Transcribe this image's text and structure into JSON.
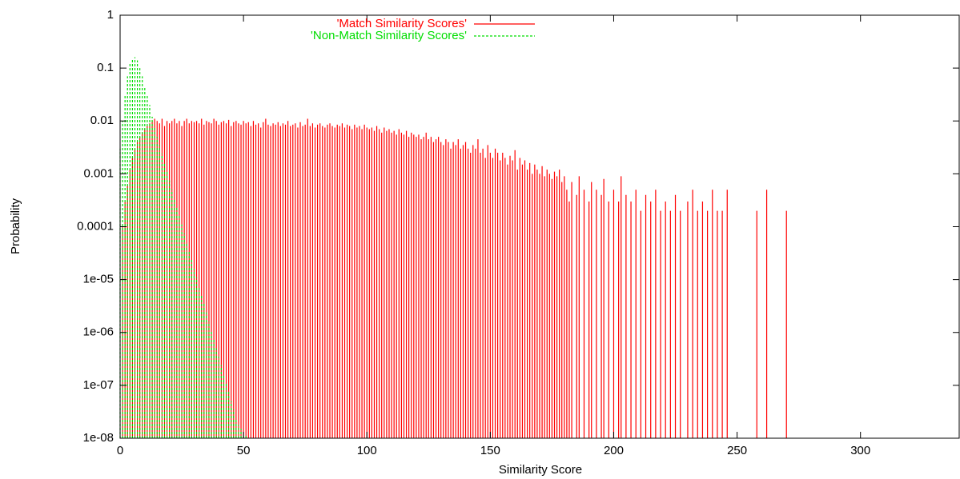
{
  "chart_data": {
    "type": "impulse",
    "xlabel": "Similarity Score",
    "ylabel": "Probability",
    "log_y": true,
    "legend": "top",
    "xlim": [
      0,
      340
    ],
    "xticks": [
      0,
      50,
      100,
      150,
      200,
      250,
      300
    ],
    "ylim": [
      1e-08,
      1
    ],
    "yticks": [
      1,
      0.1,
      0.01,
      0.001,
      0.0001,
      {
        "value": 1e-05,
        "label": "1e-05"
      },
      {
        "value": 1e-06,
        "label": "1e-06"
      },
      {
        "value": 1e-07,
        "label": "1e-07"
      },
      {
        "value": 1e-08,
        "label": "1e-08"
      }
    ],
    "series": [
      {
        "name": "'Match Similarity Scores'",
        "color": "#ff0000",
        "dash": false,
        "x": [
          1,
          2,
          3,
          4,
          5,
          6,
          7,
          8,
          9,
          10,
          11,
          12,
          13,
          14,
          15,
          16,
          17,
          18,
          19,
          20,
          21,
          22,
          23,
          24,
          25,
          26,
          27,
          28,
          29,
          30,
          31,
          32,
          33,
          34,
          35,
          36,
          37,
          38,
          39,
          40,
          41,
          42,
          43,
          44,
          45,
          46,
          47,
          48,
          49,
          50,
          51,
          52,
          53,
          54,
          55,
          56,
          57,
          58,
          59,
          60,
          61,
          62,
          63,
          64,
          65,
          66,
          67,
          68,
          69,
          70,
          71,
          72,
          73,
          74,
          75,
          76,
          77,
          78,
          79,
          80,
          81,
          82,
          83,
          84,
          85,
          86,
          87,
          88,
          89,
          90,
          91,
          92,
          93,
          94,
          95,
          96,
          97,
          98,
          99,
          100,
          101,
          102,
          103,
          104,
          105,
          106,
          107,
          108,
          109,
          110,
          111,
          112,
          113,
          114,
          115,
          116,
          117,
          118,
          119,
          120,
          121,
          122,
          123,
          124,
          125,
          126,
          127,
          128,
          129,
          130,
          131,
          132,
          133,
          134,
          135,
          136,
          137,
          138,
          139,
          140,
          141,
          142,
          143,
          144,
          145,
          146,
          147,
          148,
          149,
          150,
          151,
          152,
          153,
          154,
          155,
          156,
          157,
          158,
          159,
          160,
          161,
          162,
          163,
          164,
          165,
          166,
          167,
          168,
          169,
          170,
          171,
          172,
          173,
          174,
          175,
          176,
          177,
          178,
          179,
          180,
          181,
          182,
          183,
          185,
          186,
          188,
          190,
          191,
          193,
          195,
          196,
          198,
          200,
          202,
          203,
          205,
          207,
          209,
          211,
          213,
          215,
          217,
          219,
          221,
          223,
          225,
          227,
          230,
          232,
          234,
          236,
          238,
          240,
          242,
          244,
          246,
          258,
          262,
          270
        ],
        "values": [
          0.0001,
          0.0003,
          0.0006,
          0.0012,
          0.002,
          0.003,
          0.004,
          0.005,
          0.006,
          0.007,
          0.008,
          0.009,
          0.01,
          0.011,
          0.01,
          0.009,
          0.011,
          0.008,
          0.01,
          0.009,
          0.01,
          0.011,
          0.009,
          0.01,
          0.008,
          0.01,
          0.011,
          0.009,
          0.01,
          0.0095,
          0.01,
          0.009,
          0.011,
          0.0085,
          0.01,
          0.0095,
          0.009,
          0.011,
          0.01,
          0.0085,
          0.0095,
          0.01,
          0.009,
          0.0105,
          0.008,
          0.0095,
          0.01,
          0.009,
          0.0085,
          0.01,
          0.009,
          0.0095,
          0.008,
          0.01,
          0.0085,
          0.009,
          0.0075,
          0.0095,
          0.011,
          0.0085,
          0.008,
          0.009,
          0.0085,
          0.0095,
          0.008,
          0.009,
          0.0085,
          0.01,
          0.008,
          0.0085,
          0.009,
          0.0075,
          0.0095,
          0.008,
          0.0085,
          0.011,
          0.008,
          0.009,
          0.0075,
          0.0085,
          0.009,
          0.008,
          0.0075,
          0.0085,
          0.009,
          0.008,
          0.0075,
          0.0085,
          0.008,
          0.009,
          0.0075,
          0.0085,
          0.008,
          0.007,
          0.0085,
          0.0075,
          0.008,
          0.007,
          0.0085,
          0.0075,
          0.007,
          0.0075,
          0.0065,
          0.008,
          0.007,
          0.006,
          0.0075,
          0.0065,
          0.007,
          0.006,
          0.0065,
          0.0055,
          0.007,
          0.006,
          0.0055,
          0.0065,
          0.005,
          0.006,
          0.0055,
          0.005,
          0.0055,
          0.0045,
          0.005,
          0.006,
          0.0045,
          0.005,
          0.004,
          0.0045,
          0.005,
          0.004,
          0.0035,
          0.0045,
          0.004,
          0.003,
          0.004,
          0.0035,
          0.0045,
          0.003,
          0.0035,
          0.004,
          0.003,
          0.0025,
          0.0035,
          0.003,
          0.0045,
          0.0025,
          0.003,
          0.002,
          0.0035,
          0.0025,
          0.002,
          0.003,
          0.0025,
          0.0018,
          0.0025,
          0.002,
          0.0015,
          0.0022,
          0.0018,
          0.0028,
          0.0012,
          0.002,
          0.0015,
          0.0018,
          0.0012,
          0.0016,
          0.001,
          0.0015,
          0.0012,
          0.001,
          0.0014,
          0.0009,
          0.0012,
          0.001,
          0.0008,
          0.0011,
          0.0009,
          0.0012,
          0.0007,
          0.0009,
          0.0005,
          0.0003,
          0.0007,
          0.0004,
          0.0009,
          0.0005,
          0.0003,
          0.0007,
          0.0005,
          0.0004,
          0.0008,
          0.0003,
          0.0005,
          0.0003,
          0.0009,
          0.0004,
          0.0003,
          0.0005,
          0.0002,
          0.0004,
          0.0003,
          0.0005,
          0.0002,
          0.0003,
          0.0002,
          0.0004,
          0.0002,
          0.0003,
          0.0005,
          0.0002,
          0.0003,
          0.0002,
          0.0005,
          0.0002,
          0.0002,
          0.0005,
          0.0002,
          0.0005,
          0.0002
        ]
      },
      {
        "name": "'Non-Match Similarity Scores'",
        "color": "#00dd00",
        "dash": true,
        "x": [
          0,
          1,
          2,
          3,
          4,
          5,
          6,
          7,
          8,
          9,
          10,
          11,
          12,
          13,
          14,
          15,
          16,
          17,
          18,
          19,
          20,
          21,
          22,
          23,
          24,
          25,
          26,
          27,
          28,
          29,
          30,
          31,
          32,
          33,
          34,
          35,
          36,
          37,
          38,
          39,
          40,
          41,
          42,
          43,
          44,
          45,
          46,
          47,
          48,
          49,
          50,
          51
        ],
        "values": [
          0.003,
          0.01,
          0.03,
          0.07,
          0.12,
          0.15,
          0.16,
          0.14,
          0.1,
          0.07,
          0.045,
          0.03,
          0.02,
          0.012,
          0.008,
          0.005,
          0.0035,
          0.0024,
          0.0016,
          0.0011,
          0.00075,
          0.0005,
          0.00035,
          0.00024,
          0.00016,
          0.00011,
          7.5e-05,
          5e-05,
          3.5e-05,
          2.4e-05,
          1.6e-05,
          1.1e-05,
          7.5e-06,
          5e-06,
          3.5e-06,
          2.4e-06,
          1.6e-06,
          1.1e-06,
          7.5e-07,
          5e-07,
          3.5e-07,
          2.4e-07,
          1.6e-07,
          1.1e-07,
          7.5e-08,
          5e-08,
          3.5e-08,
          2.4e-08,
          1.8e-08,
          1.5e-08,
          1.2e-08,
          1.1e-08
        ]
      }
    ]
  }
}
